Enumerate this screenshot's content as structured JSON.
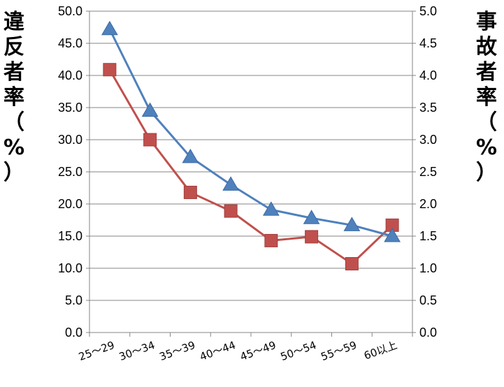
{
  "chart_data": {
    "type": "line",
    "categories": [
      "25～29",
      "30～34",
      "35～39",
      "40～44",
      "45～49",
      "50～54",
      "55～59",
      "60以上"
    ],
    "series": [
      {
        "axis": "left",
        "marker": "square",
        "color": "#C0504D",
        "values": [
          40.9,
          30.0,
          21.8,
          18.9,
          14.3,
          14.9,
          10.7,
          16.7
        ]
      },
      {
        "axis": "right",
        "marker": "triangle",
        "color": "#4F81BD",
        "values": [
          4.72,
          3.45,
          2.73,
          2.3,
          1.91,
          1.78,
          1.67,
          1.5
        ]
      }
    ],
    "left_axis": {
      "label": [
        "違",
        "反",
        "者",
        "率",
        "（",
        "%",
        "）"
      ],
      "ylim": [
        0,
        50
      ],
      "ticks": [
        "0.0",
        "5.0",
        "10.0",
        "15.0",
        "20.0",
        "25.0",
        "30.0",
        "35.0",
        "40.0",
        "45.0",
        "50.0"
      ]
    },
    "right_axis": {
      "label": [
        "事",
        "故",
        "者",
        "率",
        "（",
        "%",
        "）"
      ],
      "ylim": [
        0,
        5
      ],
      "ticks": [
        "0.0",
        "0.5",
        "1.0",
        "1.5",
        "2.0",
        "2.5",
        "3.0",
        "3.5",
        "4.0",
        "4.5",
        "5.0"
      ]
    },
    "grid": true,
    "legend": "none"
  }
}
